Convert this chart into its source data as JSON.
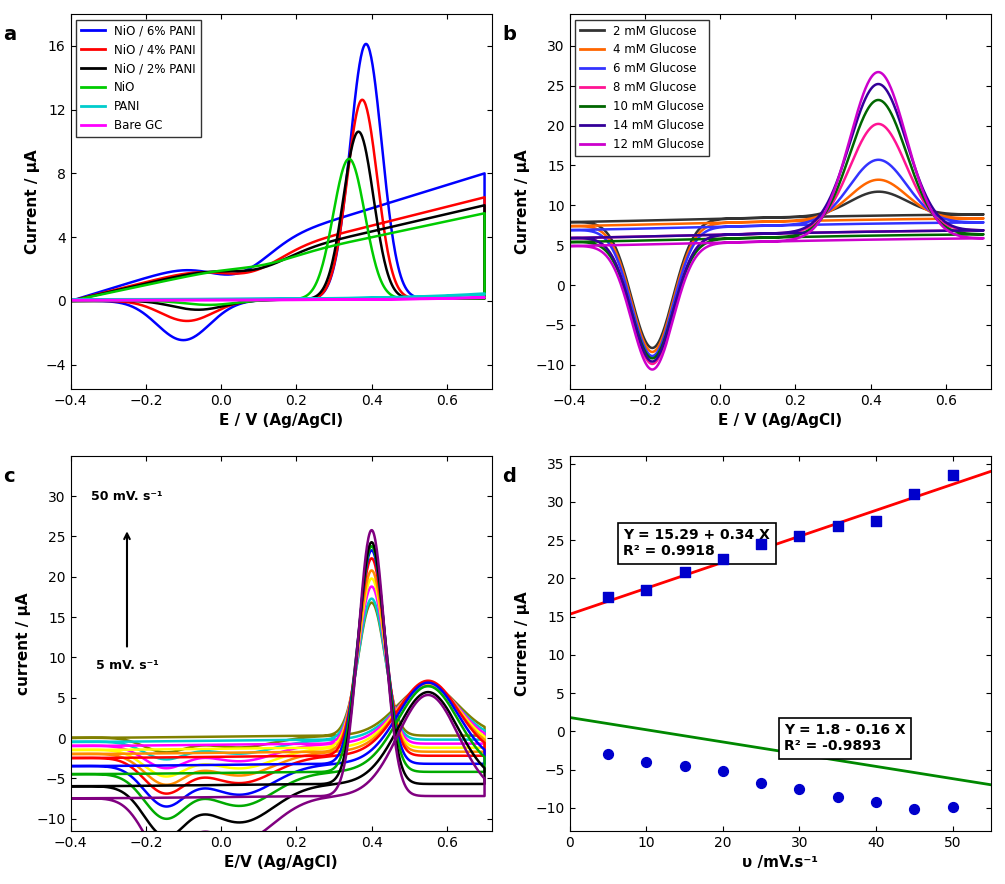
{
  "panel_a": {
    "xlabel": "E / V (Ag/AgCl)",
    "ylabel": "Current / μA",
    "xlim": [
      -0.4,
      0.72
    ],
    "ylim": [
      -5.5,
      18
    ],
    "yticks": [
      -4,
      0,
      4,
      8,
      12,
      16
    ],
    "xticks": [
      -0.4,
      -0.2,
      0.0,
      0.2,
      0.4,
      0.6
    ],
    "legend_labels": [
      "NiO / 6% PANI",
      "NiO / 4% PANI",
      "NiO / 2% PANI",
      "NiO",
      "PANI",
      "Bare GC"
    ],
    "legend_colors": [
      "#0000FF",
      "#FF0000",
      "#000000",
      "#00CC00",
      "#00CCCC",
      "#FF00FF"
    ]
  },
  "panel_b": {
    "xlabel": "E / V (Ag/AgCl)",
    "ylabel": "Current / μA",
    "xlim": [
      -0.4,
      0.72
    ],
    "ylim": [
      -13,
      34
    ],
    "yticks": [
      -10,
      -5,
      0,
      5,
      10,
      15,
      20,
      25,
      30
    ],
    "xticks": [
      -0.4,
      -0.2,
      0.0,
      0.2,
      0.4,
      0.6
    ],
    "legend_labels": [
      "2 mM Glucose",
      "4 mM Glucose",
      "6 mM Glucose",
      "8 mM Glucose",
      "10 mM Glucose",
      "14 mM Glucose",
      "12 mM Glucose"
    ],
    "legend_colors": [
      "#333333",
      "#FF6600",
      "#3333FF",
      "#FF1493",
      "#006600",
      "#330099",
      "#CC00CC"
    ]
  },
  "panel_c": {
    "xlabel": "E/V (Ag/AgCl)",
    "ylabel": "current / μA",
    "xlim": [
      -0.4,
      0.72
    ],
    "ylim": [
      -11.5,
      35
    ],
    "yticks": [
      -10,
      -5,
      0,
      5,
      10,
      15,
      20,
      25,
      30
    ],
    "xticks": [
      -0.4,
      -0.2,
      0.0,
      0.2,
      0.4,
      0.6
    ]
  },
  "panel_d": {
    "xlabel": "υ /mV.s⁻¹",
    "ylabel": "Current / μA",
    "xlim": [
      0,
      55
    ],
    "ylim": [
      -13,
      36
    ],
    "yticks": [
      -10,
      -5,
      0,
      5,
      10,
      15,
      20,
      25,
      30,
      35
    ],
    "xticks": [
      0,
      10,
      20,
      30,
      40,
      50
    ],
    "anodic_eq": "Y = 15.29 + 0.34 X",
    "anodic_r2": "R² = 0.9918",
    "cathodic_eq": "Y = 1.8 - 0.16 X",
    "cathodic_r2": "R² = -0.9893",
    "anodic_slope": 0.34,
    "anodic_intercept": 15.29,
    "cathodic_slope": -0.16,
    "cathodic_intercept": 1.8,
    "anodic_points_x": [
      5,
      10,
      15,
      20,
      25,
      30,
      35,
      40,
      45,
      50
    ],
    "anodic_points_y": [
      17.5,
      18.5,
      20.8,
      22.5,
      24.5,
      25.5,
      26.8,
      27.5,
      31.0,
      33.5
    ],
    "cathodic_points_x": [
      5,
      10,
      15,
      20,
      25,
      30,
      35,
      40,
      45,
      50
    ],
    "cathodic_points_y": [
      -3.0,
      -4.0,
      -4.6,
      -5.2,
      -6.8,
      -7.5,
      -8.6,
      -9.3,
      -10.1,
      -9.9
    ],
    "line_color_anodic": "#FF0000",
    "line_color_cathodic": "#008800",
    "point_color": "#0000CC"
  }
}
